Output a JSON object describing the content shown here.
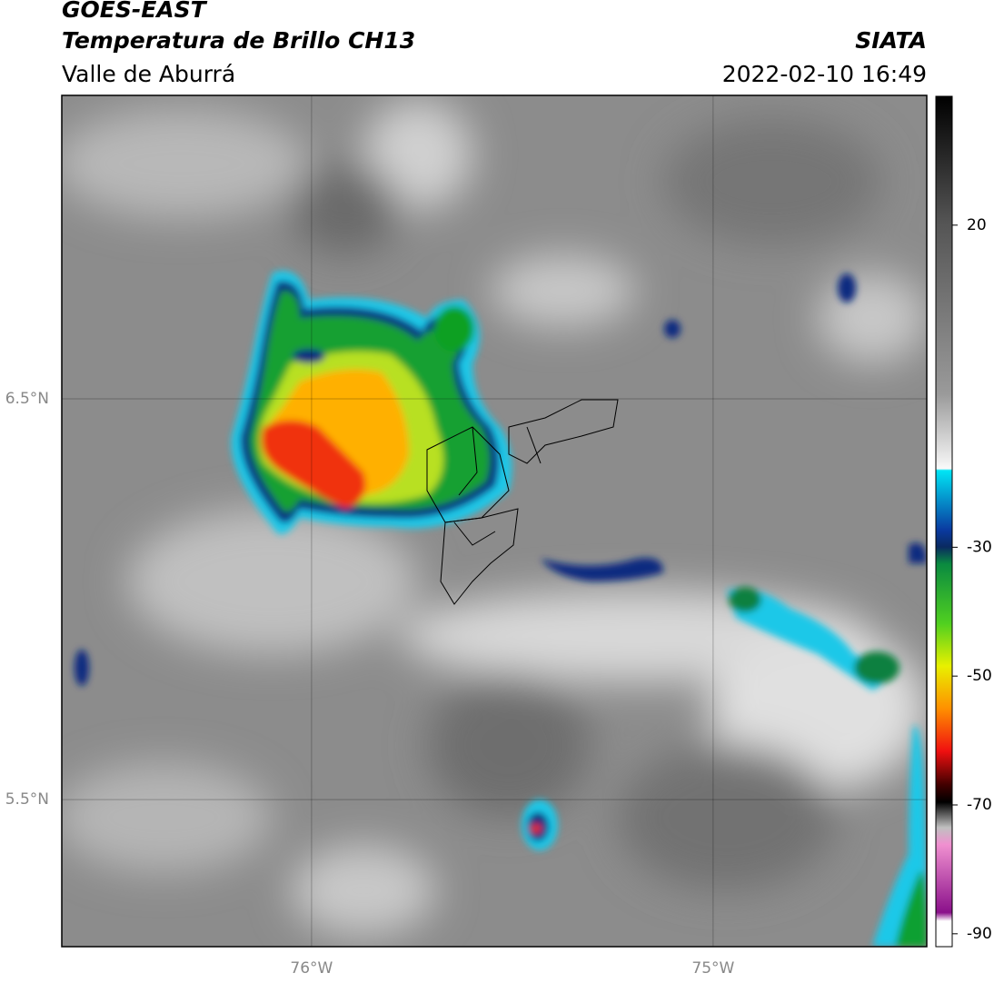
{
  "map": {
    "title": "GOES-EAST",
    "subtitle": "Temperatura de Brillo CH13",
    "region": "Valle de Aburrá",
    "source": "SIATA",
    "timestamp": "2022-02-10 16:49",
    "xlim": [
      -76.622,
      -74.468
    ],
    "ylim": [
      5.133,
      7.257
    ],
    "xticks": [
      {
        "value": -76,
        "label": "76°W"
      },
      {
        "value": -75,
        "label": "75°W"
      }
    ],
    "yticks": [
      {
        "value": 6.5,
        "label": "6.5°N"
      },
      {
        "value": 5.5,
        "label": "5.5°N"
      }
    ],
    "colorbar": {
      "lim": [
        -92,
        40
      ],
      "ticks": [
        20,
        -30,
        -50,
        -70,
        -90
      ]
    }
  }
}
